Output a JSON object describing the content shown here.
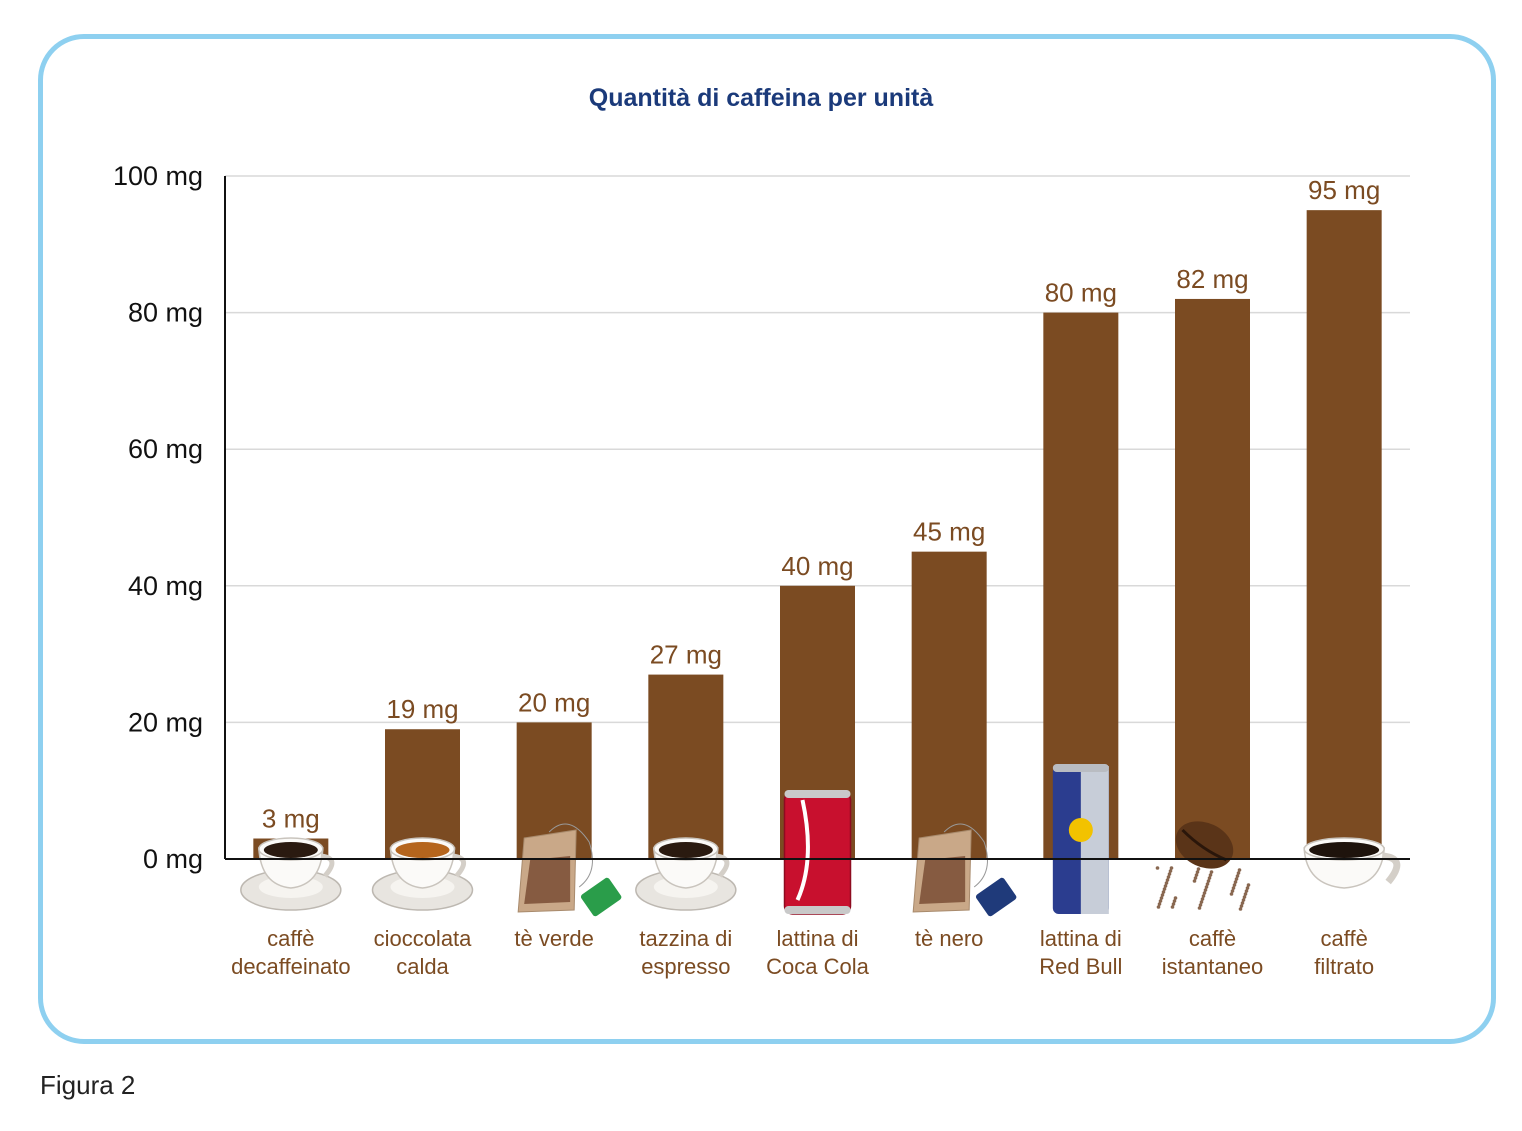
{
  "figure_caption": "Figura 2",
  "chart_data": {
    "type": "bar",
    "title": "Quantità di caffeina per unità",
    "xlabel": "",
    "ylabel": "",
    "unit": "mg",
    "ylim": [
      0,
      100
    ],
    "yticks": [
      0,
      20,
      40,
      60,
      80,
      100
    ],
    "ytick_labels": [
      "0 mg",
      "20 mg",
      "40 mg",
      "60 mg",
      "80 mg",
      "100 mg"
    ],
    "grid": true,
    "categories": [
      [
        "caffè",
        "decaffeinato"
      ],
      [
        "cioccolata",
        "calda"
      ],
      [
        "tè verde"
      ],
      [
        "tazzina di",
        "espresso"
      ],
      [
        "lattina di",
        "Coca Cola"
      ],
      [
        "tè nero"
      ],
      [
        "lattina di",
        "Red Bull"
      ],
      [
        "caffè",
        "istantaneo"
      ],
      [
        "caffè",
        "filtrato"
      ]
    ],
    "values": [
      3,
      19,
      20,
      27,
      40,
      45,
      80,
      82,
      95
    ],
    "data_labels": [
      "3 mg",
      "19 mg",
      "20 mg",
      "27 mg",
      "40 mg",
      "45 mg",
      "80 mg",
      "82 mg",
      "95 mg"
    ],
    "icons": [
      "coffee-cup-icon",
      "hot-chocolate-cup-icon",
      "green-tea-bag-icon",
      "espresso-cup-icon",
      "coca-cola-can-icon",
      "black-tea-bag-icon",
      "red-bull-can-icon",
      "coffee-bean-icon",
      "filter-coffee-mug-icon"
    ],
    "colors": {
      "bar": "#7b4b22",
      "data_label": "#7b4b22",
      "grid": "#d9d9d9",
      "title": "#1b3a7a",
      "frame": "#8ed0f0"
    }
  }
}
